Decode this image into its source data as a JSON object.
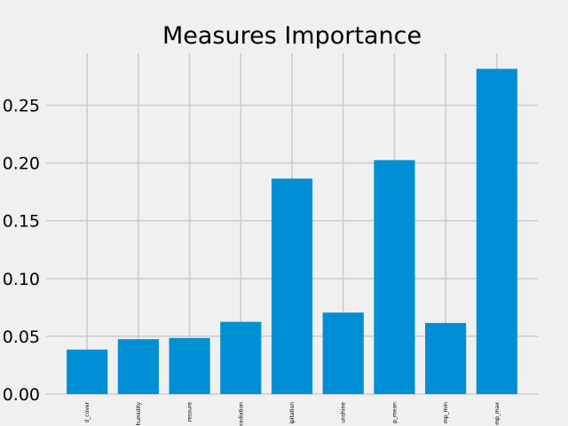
{
  "chart_data": {
    "type": "bar",
    "title": "Measures Importance",
    "xlabel": "",
    "ylabel": "",
    "categories": [
      "cloud_cover",
      "humidity",
      "pressure",
      "global_radiation",
      "precipitation",
      "sunshine",
      "temp_mean",
      "temp_min",
      "temp_max"
    ],
    "tick_labels": [
      "d_cover",
      "humidity",
      "ressure",
      "radiation",
      "ipitation",
      "unshine",
      "p_mean",
      "mp_min",
      "mp_max"
    ],
    "values": [
      0.0385,
      0.0475,
      0.0485,
      0.0625,
      0.1865,
      0.0705,
      0.2025,
      0.0615,
      0.2815
    ],
    "ylim": [
      0,
      0.295
    ],
    "yticks": [
      0.0,
      0.05,
      0.1,
      0.15,
      0.2,
      0.25
    ],
    "ytick_labels": [
      "0.00",
      "0.05",
      "0.10",
      "0.15",
      "0.20",
      "0.25"
    ],
    "grid": true,
    "colors": {
      "bar": "#008fd5",
      "background": "#f0f0f0",
      "grid": "#cbcbcb",
      "text": "#000000"
    }
  }
}
